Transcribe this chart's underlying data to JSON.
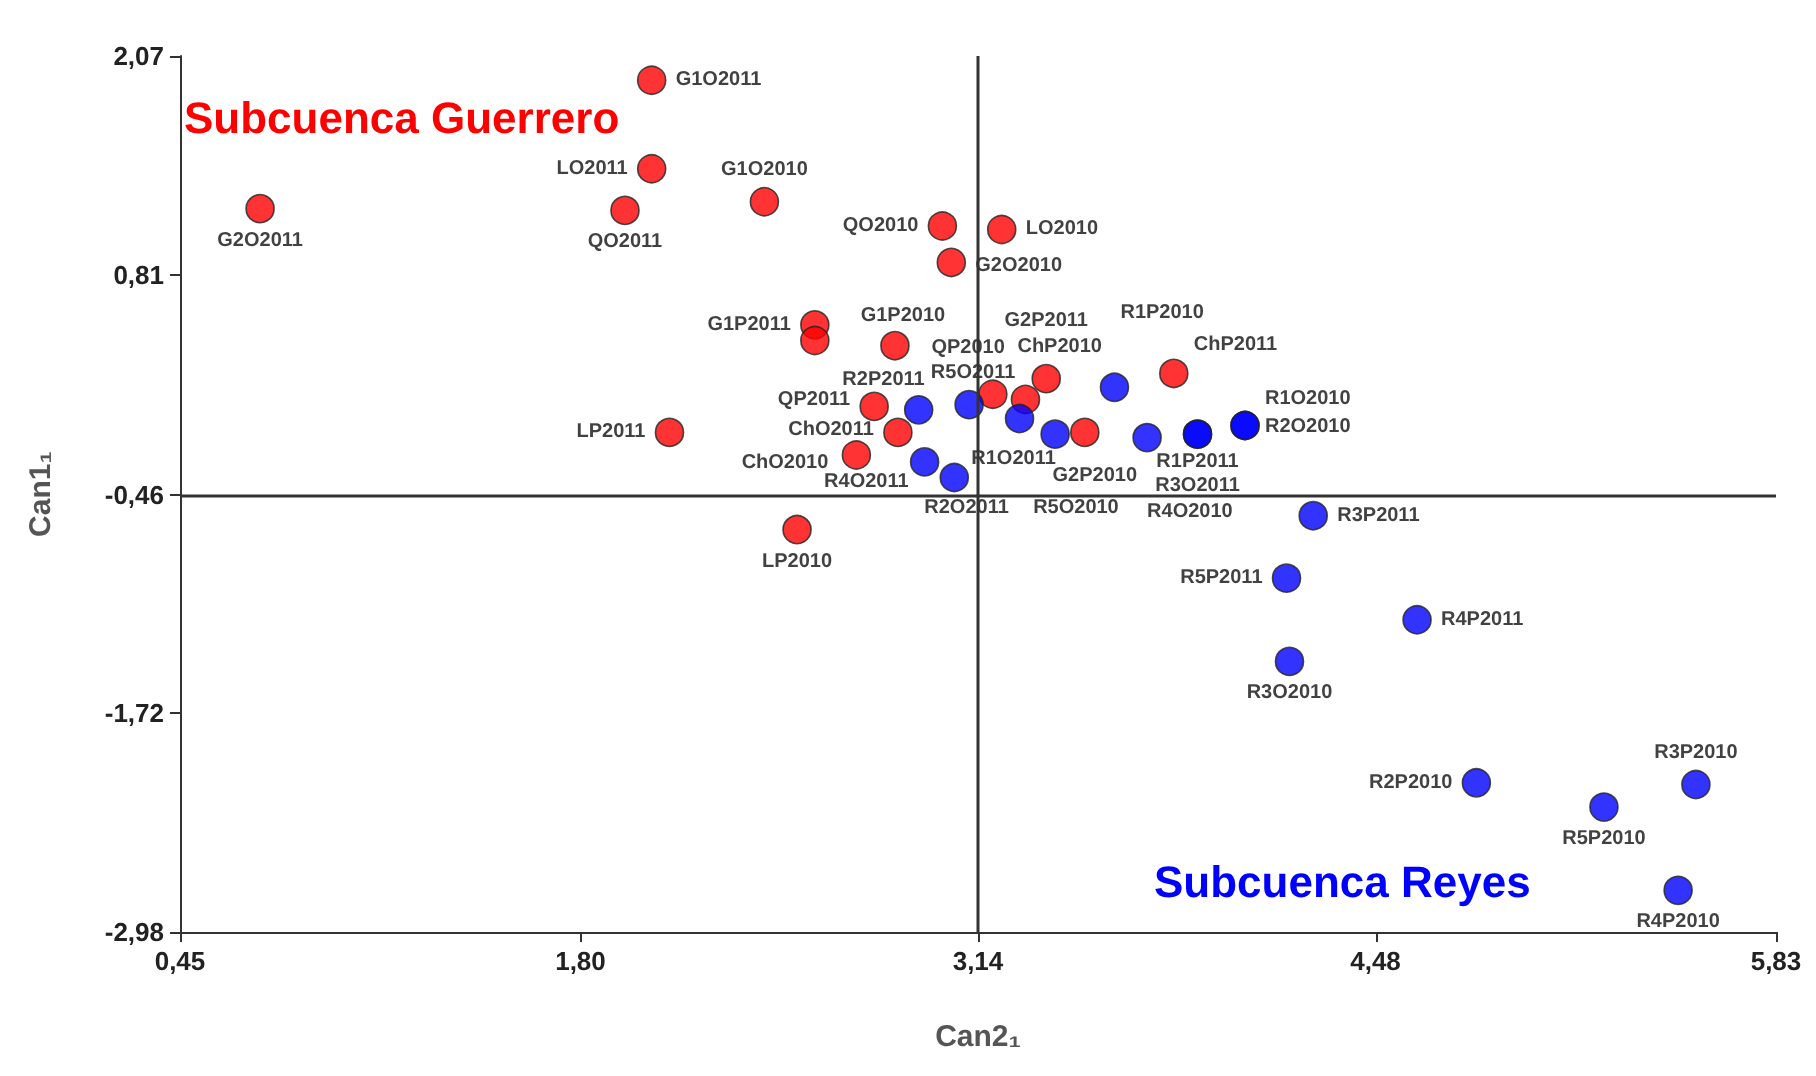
{
  "chart_data": {
    "type": "scatter",
    "xlabel": "Can2₁",
    "ylabel": "Can1₁",
    "xlim": [
      0.45,
      5.83
    ],
    "ylim": [
      -2.98,
      2.07
    ],
    "xticks": [
      {
        "value": 0.45,
        "label": "0,45"
      },
      {
        "value": 1.8,
        "label": "1,80"
      },
      {
        "value": 3.14,
        "label": "3,14"
      },
      {
        "value": 4.48,
        "label": "4,48"
      },
      {
        "value": 5.83,
        "label": "5,83"
      }
    ],
    "yticks": [
      {
        "value": -2.98,
        "label": "-2,98"
      },
      {
        "value": -1.72,
        "label": "-1,72"
      },
      {
        "value": -0.46,
        "label": "-0,46"
      },
      {
        "value": 0.81,
        "label": "0,81"
      },
      {
        "value": 2.07,
        "label": "2,07"
      }
    ],
    "grid": false,
    "legend": false,
    "marker": "circle",
    "ref_lines": [
      {
        "axis": "x",
        "value": 3.14,
        "color": "#333333"
      },
      {
        "axis": "y",
        "value": -0.46,
        "color": "#333333"
      }
    ],
    "series": [
      {
        "name": "Subcuenca Guerrero",
        "color": "#ff0000",
        "x": [
          2.04,
          2.04,
          0.72,
          1.95,
          2.42,
          3.02,
          3.22,
          3.05,
          2.59,
          2.59,
          2.86,
          2.79,
          2.87,
          2.73,
          2.1,
          2.53,
          3.19,
          3.3,
          3.37,
          3.5,
          3.8
        ],
        "values": [
          1.93,
          1.42,
          1.19,
          1.18,
          1.23,
          1.09,
          1.07,
          0.88,
          0.52,
          0.43,
          0.4,
          0.05,
          -0.1,
          -0.23,
          -0.1,
          -0.66,
          0.12,
          0.09,
          0.21,
          -0.1,
          0.24
        ],
        "value_labels": [
          "G1O2011",
          "LO2011",
          "G2O2011",
          "QO2011",
          "G1O2010",
          "QO2010",
          "LO2010",
          "G2O2010",
          "G1P2011",
          null,
          "G1P2010",
          "QP2011",
          "ChO2011",
          "ChO2010",
          "LP2011",
          "LP2010",
          "QP2010",
          "ChP2010",
          "G2P2011",
          "G2P2010",
          "ChP2011"
        ]
      },
      {
        "name": "Subcuenca Reyes",
        "color": "#0000ff",
        "x": [
          2.94,
          3.11,
          3.28,
          3.6,
          3.4,
          3.71,
          3.88,
          3.88,
          4.04,
          4.04,
          2.96,
          3.06,
          4.27,
          4.18,
          4.62,
          4.19,
          4.82,
          5.25,
          5.56,
          5.5
        ],
        "values": [
          0.03,
          0.06,
          -0.02,
          0.16,
          -0.11,
          -0.13,
          -0.11,
          -0.11,
          -0.06,
          -0.06,
          -0.27,
          -0.36,
          -0.58,
          -0.94,
          -1.18,
          -1.42,
          -2.12,
          -2.26,
          -2.13,
          -2.74
        ],
        "value_labels": [
          "R2P2011",
          "R5O2011",
          "R1O2011",
          "R1P2010",
          "R5O2010",
          "R4O2010",
          "R1P2011",
          "R3O2011",
          "R2O2010",
          "R1O2010",
          "R4O2011",
          "R2O2011",
          "R3P2011",
          "R5P2011",
          "R4P2011",
          "R3O2010",
          "R2P2010",
          "R5P2010",
          "R3P2010",
          "R4P2010"
        ]
      }
    ]
  }
}
